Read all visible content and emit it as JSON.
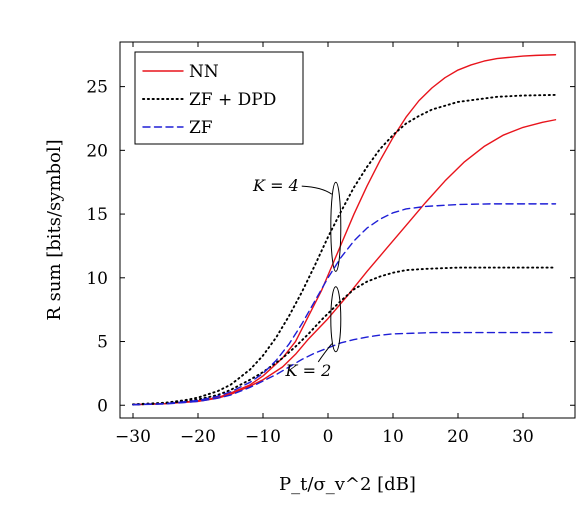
{
  "chart_data": {
    "type": "line",
    "xlabel": "P_t/σ_v^2 [dB]",
    "ylabel": "R sum [bits/symbol]",
    "xlim": [
      -32,
      38
    ],
    "ylim": [
      -1,
      28.5
    ],
    "xticks": [
      -30,
      -20,
      -10,
      0,
      10,
      20,
      30
    ],
    "xtick_labels": [
      "−30",
      "−20",
      "−10",
      "0",
      "10",
      "20",
      "30"
    ],
    "yticks": [
      0,
      5,
      10,
      15,
      20,
      25
    ],
    "ytick_labels": [
      "0",
      "5",
      "10",
      "15",
      "20",
      "25"
    ],
    "grid": false,
    "legend_position": "top-left",
    "legend": [
      {
        "label": "NN",
        "color": "#e8141c",
        "dash": "solid"
      },
      {
        "label": "ZF + DPD",
        "color": "#000000",
        "dash": "dotted"
      },
      {
        "label": "ZF",
        "color": "#1f1fd6",
        "dash": "dashed"
      }
    ],
    "annotations": [
      {
        "text": "K = 4",
        "x": -4.5,
        "y": 16.8
      },
      {
        "text": "K = 2",
        "x": 0.5,
        "y": 2.3
      }
    ],
    "series": [
      {
        "group": "K = 4",
        "legend_entry": "NN",
        "color": "#e8141c",
        "dash": "solid",
        "points": [
          [
            -30,
            0.05
          ],
          [
            -25,
            0.12
          ],
          [
            -20,
            0.35
          ],
          [
            -17,
            0.6
          ],
          [
            -15,
            0.95
          ],
          [
            -12,
            1.6
          ],
          [
            -10,
            2.3
          ],
          [
            -7,
            3.7
          ],
          [
            -5,
            5.0
          ],
          [
            -3,
            7.0
          ],
          [
            -1,
            9.0
          ],
          [
            0,
            10.2
          ],
          [
            2,
            12.6
          ],
          [
            4,
            15.0
          ],
          [
            6,
            17.2
          ],
          [
            8,
            19.2
          ],
          [
            10,
            21.0
          ],
          [
            12,
            22.6
          ],
          [
            14,
            23.9
          ],
          [
            16,
            24.9
          ],
          [
            18,
            25.7
          ],
          [
            20,
            26.3
          ],
          [
            22,
            26.7
          ],
          [
            24,
            27.0
          ],
          [
            26,
            27.2
          ],
          [
            28,
            27.3
          ],
          [
            30,
            27.4
          ],
          [
            32,
            27.45
          ],
          [
            35,
            27.5
          ]
        ]
      },
      {
        "group": "K = 2",
        "legend_entry": "NN",
        "color": "#e8141c",
        "dash": "solid",
        "points": [
          [
            -30,
            0.05
          ],
          [
            -25,
            0.12
          ],
          [
            -20,
            0.3
          ],
          [
            -17,
            0.55
          ],
          [
            -15,
            0.85
          ],
          [
            -12,
            1.5
          ],
          [
            -10,
            2.0
          ],
          [
            -7,
            3.0
          ],
          [
            -5,
            4.0
          ],
          [
            -3,
            5.2
          ],
          [
            0,
            6.8
          ],
          [
            3,
            8.6
          ],
          [
            6,
            10.5
          ],
          [
            9,
            12.3
          ],
          [
            12,
            14.1
          ],
          [
            15,
            15.9
          ],
          [
            18,
            17.6
          ],
          [
            21,
            19.1
          ],
          [
            24,
            20.3
          ],
          [
            27,
            21.2
          ],
          [
            30,
            21.8
          ],
          [
            33,
            22.2
          ],
          [
            35,
            22.4
          ]
        ]
      },
      {
        "group": "K = 4",
        "legend_entry": "ZF + DPD",
        "color": "#000000",
        "dash": "dotted",
        "points": [
          [
            -30,
            0.07
          ],
          [
            -25,
            0.2
          ],
          [
            -22,
            0.4
          ],
          [
            -20,
            0.6
          ],
          [
            -17,
            1.1
          ],
          [
            -15,
            1.6
          ],
          [
            -12,
            2.8
          ],
          [
            -10,
            3.9
          ],
          [
            -8,
            5.3
          ],
          [
            -6,
            7.0
          ],
          [
            -4,
            8.9
          ],
          [
            -2,
            11.0
          ],
          [
            0,
            13.2
          ],
          [
            2,
            15.2
          ],
          [
            4,
            17.1
          ],
          [
            6,
            18.7
          ],
          [
            8,
            20.1
          ],
          [
            10,
            21.2
          ],
          [
            12,
            22.1
          ],
          [
            14,
            22.7
          ],
          [
            16,
            23.2
          ],
          [
            18,
            23.5
          ],
          [
            20,
            23.8
          ],
          [
            23,
            24.0
          ],
          [
            26,
            24.2
          ],
          [
            30,
            24.3
          ],
          [
            35,
            24.35
          ]
        ]
      },
      {
        "group": "K = 2",
        "legend_entry": "ZF + DPD",
        "color": "#000000",
        "dash": "dotted",
        "points": [
          [
            -30,
            0.05
          ],
          [
            -25,
            0.15
          ],
          [
            -20,
            0.45
          ],
          [
            -17,
            0.8
          ],
          [
            -15,
            1.2
          ],
          [
            -12,
            2.0
          ],
          [
            -10,
            2.6
          ],
          [
            -7,
            3.7
          ],
          [
            -5,
            4.6
          ],
          [
            -3,
            5.6
          ],
          [
            -1,
            6.7
          ],
          [
            0,
            7.2
          ],
          [
            2,
            8.2
          ],
          [
            4,
            9.1
          ],
          [
            6,
            9.7
          ],
          [
            8,
            10.1
          ],
          [
            10,
            10.4
          ],
          [
            12,
            10.6
          ],
          [
            15,
            10.7
          ],
          [
            20,
            10.8
          ],
          [
            25,
            10.8
          ],
          [
            30,
            10.8
          ],
          [
            35,
            10.8
          ]
        ]
      },
      {
        "group": "K = 4",
        "legend_entry": "ZF",
        "color": "#1f1fd6",
        "dash": "dashed",
        "points": [
          [
            -30,
            0.05
          ],
          [
            -25,
            0.13
          ],
          [
            -20,
            0.38
          ],
          [
            -17,
            0.7
          ],
          [
            -15,
            1.05
          ],
          [
            -12,
            1.8
          ],
          [
            -10,
            2.5
          ],
          [
            -8,
            3.5
          ],
          [
            -6,
            4.8
          ],
          [
            -4,
            6.4
          ],
          [
            -2,
            8.2
          ],
          [
            0,
            10.0
          ],
          [
            2,
            11.6
          ],
          [
            4,
            12.9
          ],
          [
            6,
            13.9
          ],
          [
            8,
            14.6
          ],
          [
            10,
            15.1
          ],
          [
            12,
            15.4
          ],
          [
            15,
            15.6
          ],
          [
            20,
            15.75
          ],
          [
            25,
            15.8
          ],
          [
            30,
            15.8
          ],
          [
            35,
            15.8
          ]
        ]
      },
      {
        "group": "K = 2",
        "legend_entry": "ZF",
        "color": "#1f1fd6",
        "dash": "dashed",
        "points": [
          [
            -30,
            0.04
          ],
          [
            -25,
            0.1
          ],
          [
            -20,
            0.3
          ],
          [
            -17,
            0.55
          ],
          [
            -15,
            0.8
          ],
          [
            -12,
            1.4
          ],
          [
            -10,
            1.9
          ],
          [
            -8,
            2.4
          ],
          [
            -6,
            3.0
          ],
          [
            -4,
            3.6
          ],
          [
            -2,
            4.1
          ],
          [
            0,
            4.5
          ],
          [
            2,
            4.9
          ],
          [
            4,
            5.15
          ],
          [
            6,
            5.35
          ],
          [
            8,
            5.5
          ],
          [
            10,
            5.6
          ],
          [
            13,
            5.65
          ],
          [
            16,
            5.7
          ],
          [
            20,
            5.7
          ],
          [
            25,
            5.7
          ],
          [
            30,
            5.7
          ],
          [
            35,
            5.7
          ]
        ]
      }
    ]
  }
}
